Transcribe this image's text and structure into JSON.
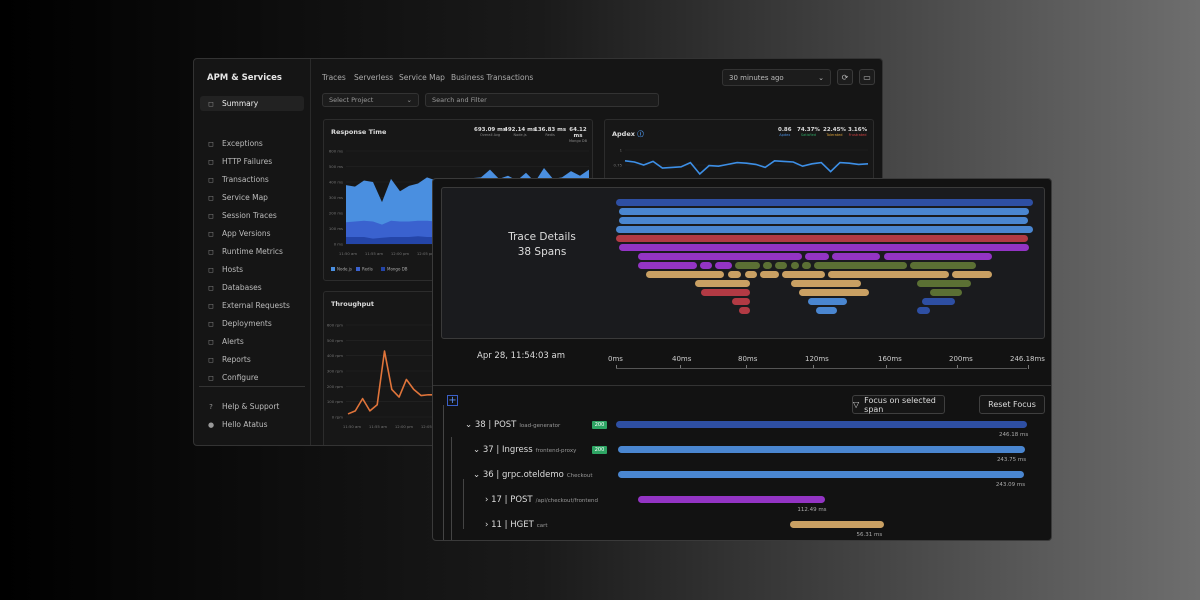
{
  "sidebar": {
    "title": "APM & Services",
    "items": [
      {
        "label": "Summary",
        "icon": "summary-icon",
        "active": true
      },
      {
        "label": "Exceptions",
        "icon": "warning-icon"
      },
      {
        "label": "HTTP Failures",
        "icon": "lightning-icon"
      },
      {
        "label": "Transactions",
        "icon": "arrows-icon"
      },
      {
        "label": "Service Map",
        "icon": "service-map-icon"
      },
      {
        "label": "Session Traces",
        "icon": "session-icon"
      },
      {
        "label": "App Versions",
        "icon": "versions-icon"
      },
      {
        "label": "Runtime Metrics",
        "icon": "gauge-icon"
      },
      {
        "label": "Hosts",
        "icon": "hosts-icon"
      },
      {
        "label": "Databases",
        "icon": "database-icon"
      },
      {
        "label": "External Requests",
        "icon": "network-icon"
      },
      {
        "label": "Deployments",
        "icon": "cloud-icon"
      },
      {
        "label": "Alerts",
        "icon": "bell-icon"
      },
      {
        "label": "Reports",
        "icon": "report-icon"
      },
      {
        "label": "Configure",
        "icon": "sliders-icon"
      }
    ],
    "footer": [
      {
        "label": "Help & Support",
        "icon": "help-icon"
      },
      {
        "label": "Hello Atatus",
        "icon": "user-icon"
      }
    ]
  },
  "tabs": [
    "Traces",
    "Serverless",
    "Service Map",
    "Business Transactions"
  ],
  "filters": {
    "project": "Select Project",
    "search_placeholder": "Search and Filter",
    "time": "30 minutes ago"
  },
  "colors": {
    "nodejs": "#4a8fe0",
    "redis": "#3a62cf",
    "mongo": "#2445a8",
    "throughput": "#e0743a",
    "apdex": "#3d8fe6"
  },
  "response_time": {
    "title": "Response Time",
    "stats": [
      {
        "value": "693.09 ms",
        "label": "Overall Avg"
      },
      {
        "value": "492.14 ms",
        "label": "Node.js"
      },
      {
        "value": "136.83 ms",
        "label": "Redis"
      },
      {
        "value": "64.12 ms",
        "label": "Mongo DB"
      }
    ]
  },
  "apdex": {
    "title": "Apdex",
    "stats": [
      {
        "value": "0.86",
        "label": "Apdex",
        "color": "#4a8fe0"
      },
      {
        "value": "74.37%",
        "label": "Satisfied",
        "color": "#2ea564"
      },
      {
        "value": "22.45%",
        "label": "Tolerated",
        "color": "#d9a03a"
      },
      {
        "value": "3.16%",
        "label": "Frustrated",
        "color": "#d04040"
      }
    ]
  },
  "throughput": {
    "title": "Throughput"
  },
  "chart_data": [
    {
      "type": "area",
      "title": "Response Time",
      "stacked": true,
      "yticks": [
        "0 ms",
        "100 ms",
        "200 ms",
        "300 ms",
        "400 ms",
        "500 ms",
        "600 ms"
      ],
      "ylim": [
        0,
        600
      ],
      "xticks": [
        "11:50 am",
        "11:55 am",
        "12:00 pm",
        "12:05 pm"
      ],
      "legend": "bottom-left",
      "series": [
        {
          "name": "Node.js",
          "values": [
            240,
            225,
            260,
            255,
            145,
            270,
            195,
            230,
            240,
            280,
            265,
            240,
            190,
            270,
            280,
            290,
            340,
            280,
            300,
            270,
            320,
            260,
            350,
            280,
            290,
            330,
            300,
            340
          ]
        },
        {
          "name": "Redis",
          "values": [
            95,
            100,
            105,
            110,
            85,
            105,
            100,
            100,
            100,
            105,
            100,
            95,
            80,
            95,
            100,
            95,
            95,
            95,
            95,
            95,
            95,
            95,
            95,
            95,
            95,
            95,
            95,
            95
          ]
        },
        {
          "name": "Mongo DB",
          "values": [
            45,
            45,
            45,
            35,
            40,
            45,
            45,
            45,
            50,
            45,
            45,
            45,
            40,
            45,
            45,
            45,
            45,
            45,
            45,
            45,
            45,
            45,
            45,
            45,
            45,
            45,
            45,
            45
          ]
        }
      ]
    },
    {
      "type": "line",
      "title": "Apdex",
      "ylim": [
        0.5,
        1
      ],
      "yticks": [
        "0.75",
        "1"
      ],
      "series": [
        {
          "name": "Apdex",
          "values": [
            0.82,
            0.8,
            0.75,
            0.81,
            0.7,
            0.71,
            0.72,
            0.79,
            0.6,
            0.74,
            0.73,
            0.76,
            0.79,
            0.78,
            0.76,
            0.71,
            0.82,
            0.81,
            0.8,
            0.73,
            0.77,
            0.79,
            0.64,
            0.79,
            0.78,
            0.76,
            0.77
          ]
        }
      ]
    },
    {
      "type": "line",
      "title": "Throughput",
      "ylim": [
        0,
        600
      ],
      "yticks": [
        "0 rpm",
        "100 rpm",
        "200 rpm",
        "300 rpm",
        "400 rpm",
        "500 rpm",
        "600 rpm"
      ],
      "xticks": [
        "11:50 am",
        "11:55 am",
        "12:00 pm",
        "12:05 pm"
      ],
      "series": [
        {
          "name": "Throughput",
          "values": [
            20,
            40,
            120,
            40,
            80,
            430,
            180,
            130,
            245,
            180,
            140,
            145,
            145
          ]
        }
      ]
    }
  ],
  "trace": {
    "title": "Trace Details",
    "spans_count": "38 Spans",
    "timestamp": "Apr 28, 11:54:03 am",
    "axis": [
      "0ms",
      "40ms",
      "80ms",
      "120ms",
      "160ms",
      "200ms",
      "246.18ms"
    ],
    "focus_button": "Focus on selected span",
    "reset_button": "Reset Focus",
    "spans": [
      {
        "id": "38",
        "name": "POST",
        "service": "load-generator",
        "status": "200",
        "duration": "246.18 ms",
        "start_ms": 0,
        "duration_ms": 246.18,
        "color": "#2e4fa3"
      },
      {
        "id": "37",
        "name": "Ingress",
        "service": "frontend-proxy",
        "status": "200",
        "duration": "243.75 ms",
        "start_ms": 1.2,
        "duration_ms": 243.75,
        "color": "#4a86d0"
      },
      {
        "id": "36",
        "name": "grpc.oteldemo",
        "service": "Checkout",
        "duration": "243.09 ms",
        "start_ms": 1.2,
        "duration_ms": 243.09,
        "color": "#4a86d0"
      },
      {
        "id": "17",
        "name": "POST",
        "service": "/api/checkout/frontend",
        "duration": "112.49 ms",
        "start_ms": 12.9,
        "duration_ms": 112.49,
        "color": "#9334c4"
      },
      {
        "id": "11",
        "name": "HGET",
        "service": "cart",
        "duration": "56.31 ms",
        "start_ms": 104.5,
        "duration_ms": 56.31,
        "color": "#c9a063"
      }
    ]
  }
}
